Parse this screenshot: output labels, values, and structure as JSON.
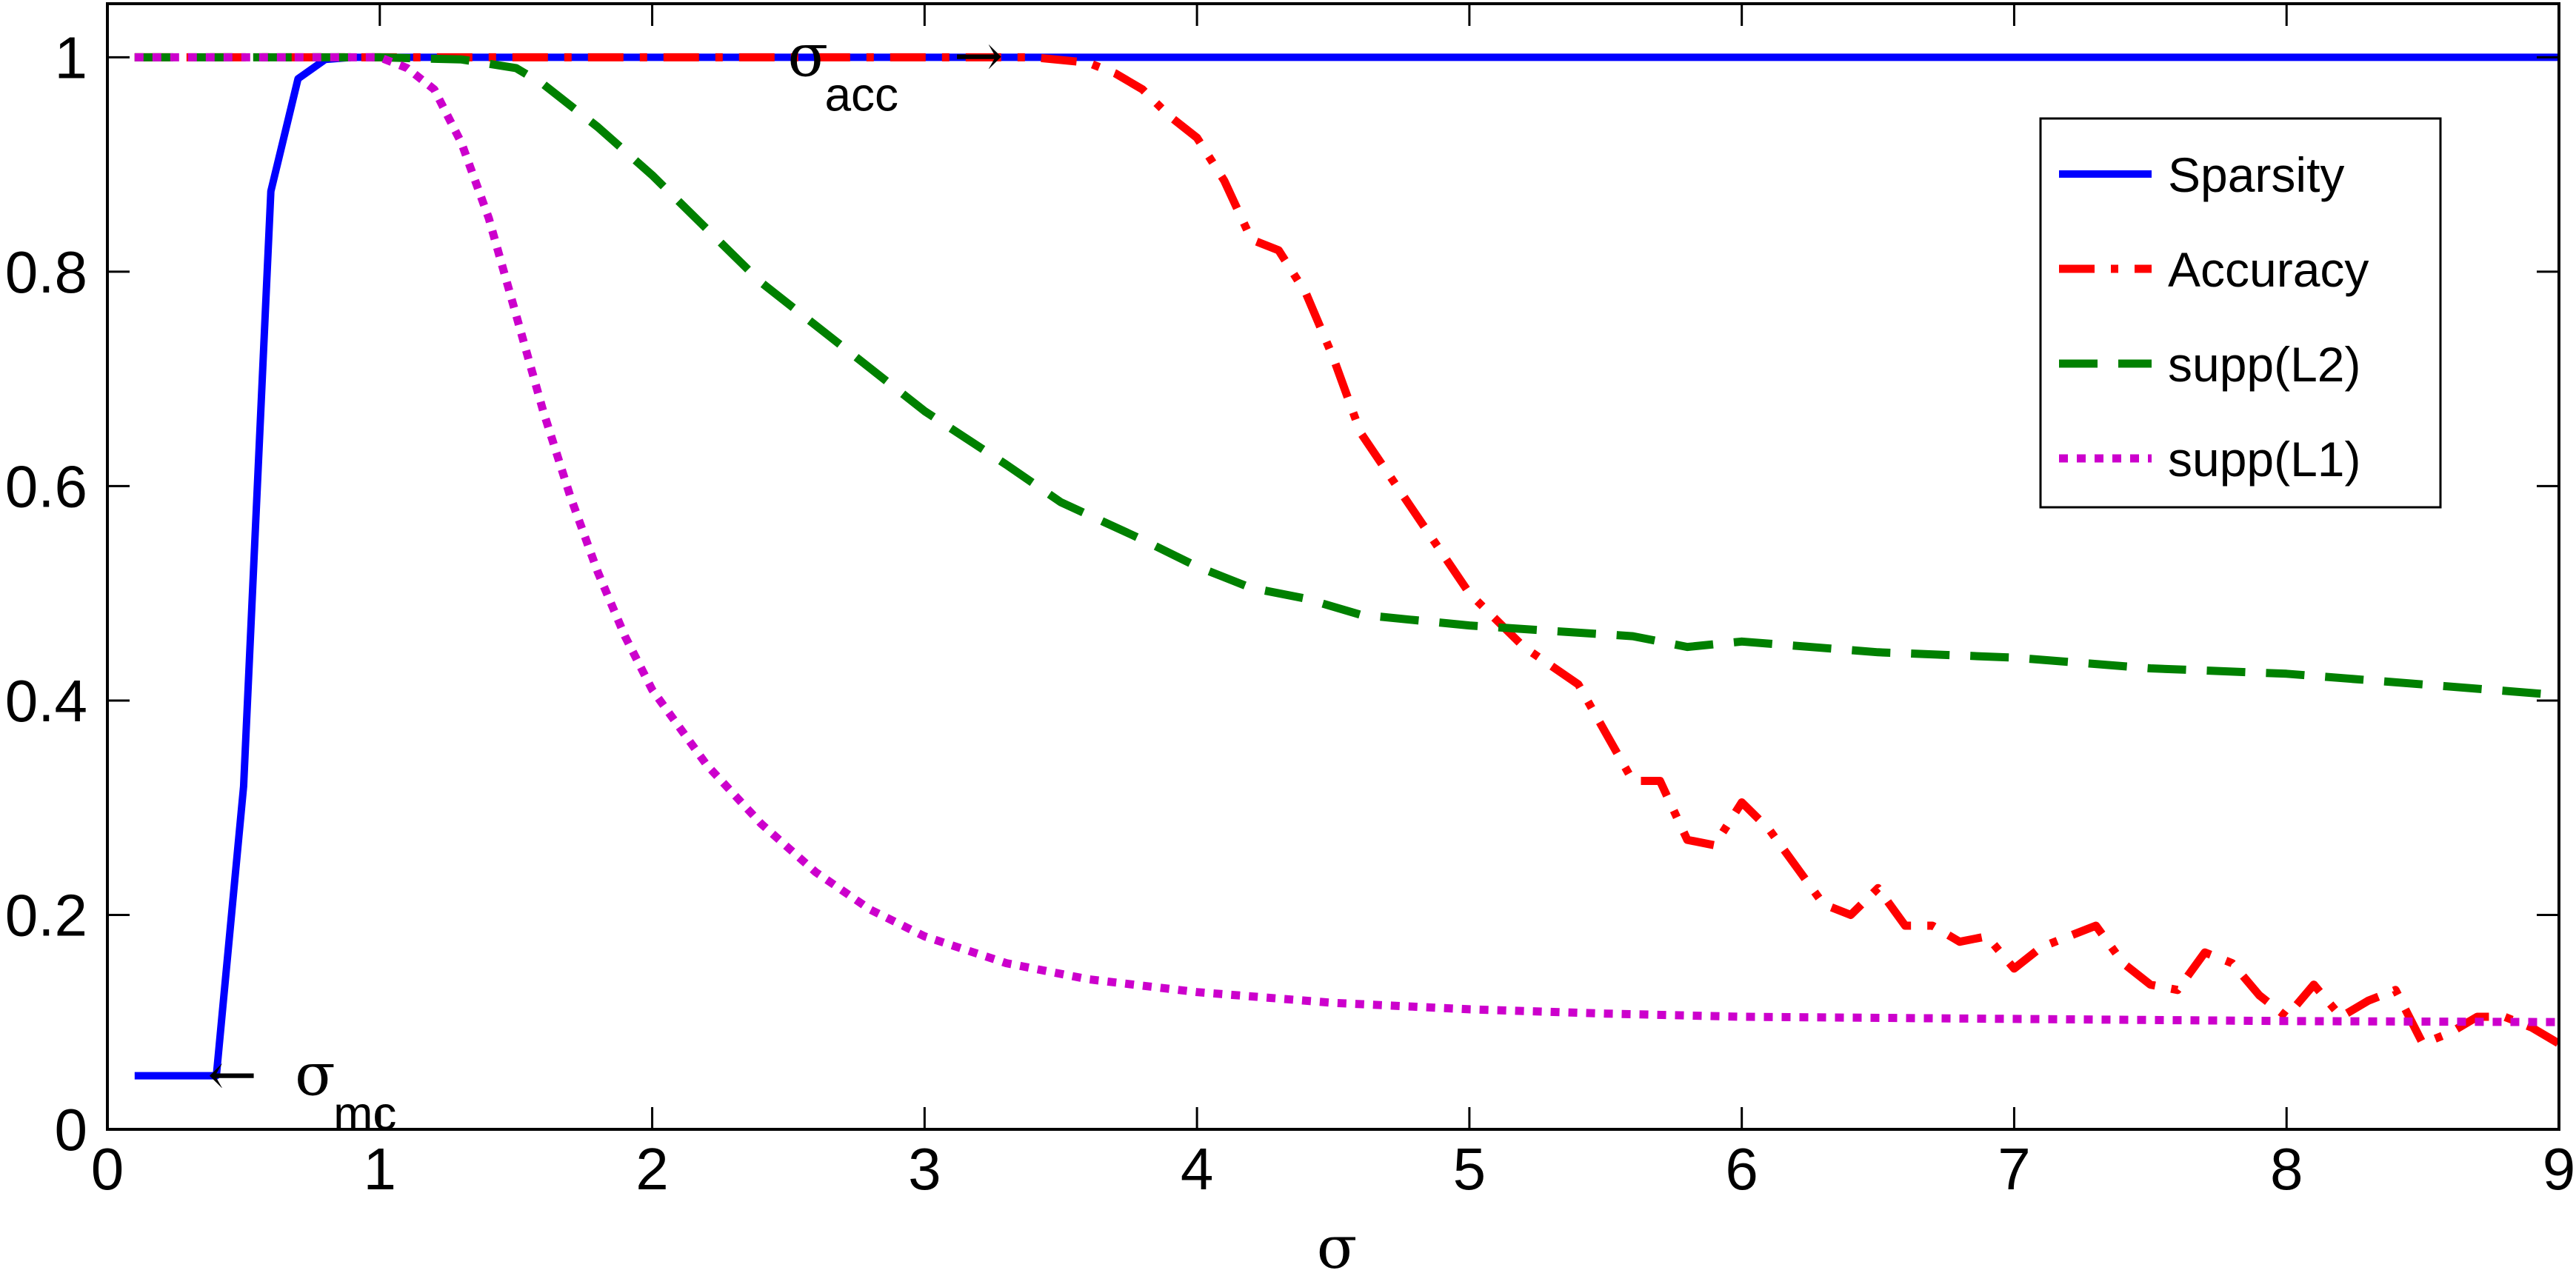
{
  "chart_data": {
    "type": "line",
    "title": "",
    "xlabel": "σ",
    "ylabel": "",
    "xlim": [
      0,
      9
    ],
    "ylim": [
      0,
      1.05
    ],
    "xticks": [
      "0",
      "1",
      "2",
      "3",
      "4",
      "5",
      "6",
      "7",
      "8",
      "9"
    ],
    "yticks": [
      "0",
      "0.2",
      "0.4",
      "0.6",
      "0.8",
      "1"
    ],
    "grid": false,
    "legend_position": "top-right",
    "series": [
      {
        "name": "Sparsity",
        "color": "#0000ff",
        "style": "solid",
        "x": [
          0.1,
          0.4,
          0.5,
          0.6,
          0.7,
          0.8,
          0.9,
          1.0,
          2.0,
          3.0,
          4.0,
          5.0,
          6.0,
          7.0,
          8.0,
          9.0
        ],
        "y": [
          0.05,
          0.05,
          0.32,
          0.875,
          0.98,
          0.998,
          1.0,
          1.0,
          1.0,
          1.0,
          1.0,
          1.0,
          1.0,
          1.0,
          1.0,
          1.0
        ]
      },
      {
        "name": "Accuracy",
        "color": "#ff0000",
        "style": "dashdot",
        "x": [
          0.1,
          1.0,
          2.0,
          3.0,
          3.4,
          3.6,
          3.7,
          3.8,
          3.9,
          4.0,
          4.1,
          4.2,
          4.3,
          4.4,
          4.5,
          4.6,
          4.8,
          5.0,
          5.2,
          5.4,
          5.5,
          5.6,
          5.7,
          5.8,
          5.9,
          6.0,
          6.1,
          6.2,
          6.3,
          6.4,
          6.5,
          6.6,
          6.7,
          6.8,
          6.9,
          7.0,
          7.1,
          7.2,
          7.3,
          7.4,
          7.5,
          7.6,
          7.7,
          7.8,
          7.9,
          8.0,
          8.1,
          8.2,
          8.3,
          8.4,
          8.5,
          8.6,
          8.7,
          8.8,
          8.9,
          9.0
        ],
        "y": [
          1.0,
          1.0,
          1.0,
          1.0,
          1.0,
          0.995,
          0.985,
          0.97,
          0.945,
          0.925,
          0.885,
          0.83,
          0.82,
          0.78,
          0.72,
          0.65,
          0.575,
          0.5,
          0.45,
          0.415,
          0.37,
          0.325,
          0.325,
          0.27,
          0.265,
          0.305,
          0.28,
          0.245,
          0.21,
          0.2,
          0.225,
          0.19,
          0.19,
          0.175,
          0.18,
          0.15,
          0.17,
          0.18,
          0.19,
          0.155,
          0.135,
          0.13,
          0.165,
          0.155,
          0.125,
          0.105,
          0.135,
          0.105,
          0.12,
          0.13,
          0.08,
          0.09,
          0.105,
          0.105,
          0.095,
          0.08
        ]
      },
      {
        "name": "supp(L2)",
        "color": "#008000",
        "style": "dashed",
        "x": [
          0.1,
          0.5,
          1.0,
          1.3,
          1.5,
          1.6,
          1.8,
          2.0,
          2.2,
          2.4,
          2.6,
          2.8,
          3.0,
          3.3,
          3.5,
          3.8,
          4.0,
          4.2,
          4.4,
          4.6,
          4.8,
          5.0,
          5.3,
          5.6,
          5.8,
          6.0,
          6.5,
          7.0,
          7.5,
          8.0,
          8.5,
          9.0
        ],
        "y": [
          1.0,
          1.0,
          1.0,
          0.998,
          0.99,
          0.975,
          0.935,
          0.89,
          0.84,
          0.79,
          0.75,
          0.71,
          0.67,
          0.62,
          0.585,
          0.55,
          0.525,
          0.505,
          0.495,
          0.48,
          0.475,
          0.47,
          0.465,
          0.46,
          0.45,
          0.455,
          0.445,
          0.44,
          0.43,
          0.425,
          0.415,
          0.405
        ]
      },
      {
        "name": "supp(L1)",
        "color": "#cc00cc",
        "style": "dotted",
        "x": [
          0.1,
          0.5,
          1.0,
          1.1,
          1.2,
          1.3,
          1.4,
          1.5,
          1.6,
          1.7,
          1.8,
          1.9,
          2.0,
          2.2,
          2.4,
          2.6,
          2.8,
          3.0,
          3.3,
          3.6,
          4.0,
          4.5,
          5.0,
          5.5,
          6.0,
          7.0,
          8.0,
          9.0
        ],
        "y": [
          1.0,
          1.0,
          1.0,
          0.99,
          0.97,
          0.92,
          0.85,
          0.76,
          0.67,
          0.59,
          0.52,
          0.46,
          0.41,
          0.34,
          0.285,
          0.24,
          0.205,
          0.18,
          0.155,
          0.14,
          0.128,
          0.118,
          0.112,
          0.108,
          0.105,
          0.103,
          0.101,
          0.1
        ]
      }
    ],
    "annotations": [
      {
        "id": "sigma-mc",
        "arrow": "←",
        "symbol": "σ",
        "subscript": "mc",
        "x": 0.4,
        "y": 0.05
      },
      {
        "id": "sigma-acc",
        "arrow": "→",
        "symbol": "σ",
        "subscript": "acc",
        "x": 3.4,
        "y": 1.0
      }
    ]
  }
}
